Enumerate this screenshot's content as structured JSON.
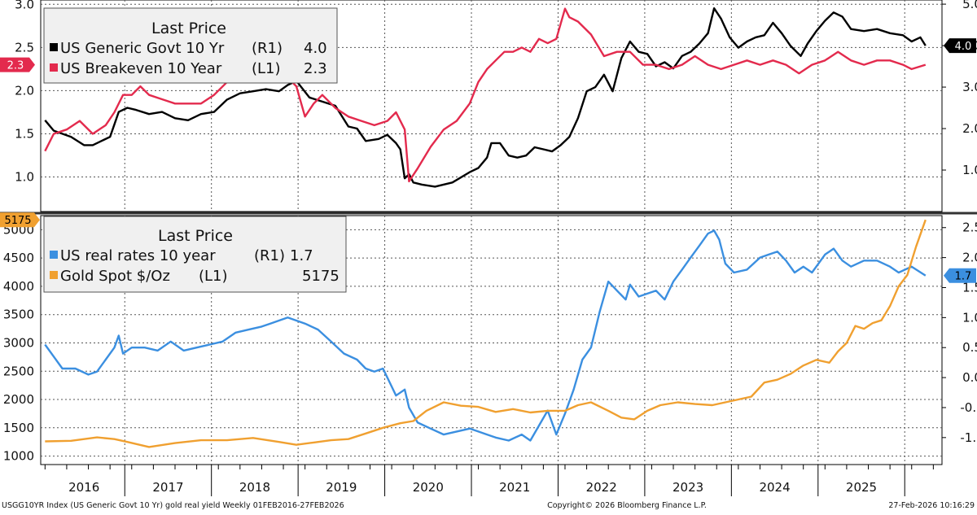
{
  "chart_data": [
    {
      "type": "line",
      "legend_title": "Last Price",
      "legend_placement": "top-left",
      "grid": true,
      "left_axis": {
        "ylim": [
          0.6,
          3.05
        ],
        "ticks": [
          1.0,
          1.5,
          2.0,
          2.5,
          3.0
        ],
        "tick_labels": [
          "1.0",
          "1.5",
          "2.0",
          "2.5",
          "3.0"
        ]
      },
      "right_axis": {
        "ylim": [
          0.0,
          5.1
        ],
        "ticks": [
          1.0,
          2.0,
          3.0,
          4.0,
          5.0
        ],
        "tick_labels": [
          "1.0",
          "2.0",
          "3.0",
          "4.0",
          "5.0"
        ]
      },
      "series": [
        {
          "name": "US Generic Govt 10 Yr",
          "axis_ref": "(R1)",
          "last_label": "4.0",
          "color": "#000000",
          "x": [
            2016.0,
            2016.1,
            2016.3,
            2016.45,
            2016.55,
            2016.65,
            2016.75,
            2016.85,
            2016.95,
            2017.05,
            2017.2,
            2017.35,
            2017.5,
            2017.65,
            2017.8,
            2017.95,
            2018.1,
            2018.25,
            2018.4,
            2018.55,
            2018.7,
            2018.8,
            2018.9,
            2019.05,
            2019.2,
            2019.35,
            2019.5,
            2019.6,
            2019.7,
            2019.85,
            2019.95,
            2020.05,
            2020.1,
            2020.15,
            2020.2,
            2020.25,
            2020.35,
            2020.5,
            2020.7,
            2020.9,
            2021.0,
            2021.1,
            2021.15,
            2021.25,
            2021.35,
            2021.45,
            2021.55,
            2021.65,
            2021.75,
            2021.85,
            2021.95,
            2022.05,
            2022.15,
            2022.25,
            2022.35,
            2022.45,
            2022.55,
            2022.65,
            2022.75,
            2022.85,
            2022.95,
            2023.05,
            2023.15,
            2023.25,
            2023.35,
            2023.45,
            2023.55,
            2023.65,
            2023.72,
            2023.8,
            2023.9,
            2024.0,
            2024.1,
            2024.2,
            2024.3,
            2024.4,
            2024.5,
            2024.6,
            2024.72,
            2024.8,
            2024.9,
            2025.0,
            2025.1,
            2025.2,
            2025.3,
            2025.45,
            2025.6,
            2025.75,
            2025.9,
            2026.0,
            2026.1,
            2026.16
          ],
          "values": [
            2.2,
            1.95,
            1.8,
            1.6,
            1.6,
            1.7,
            1.8,
            2.4,
            2.5,
            2.45,
            2.35,
            2.4,
            2.25,
            2.2,
            2.35,
            2.4,
            2.7,
            2.85,
            2.9,
            2.95,
            2.9,
            3.05,
            3.15,
            2.75,
            2.65,
            2.55,
            2.05,
            2.0,
            1.7,
            1.75,
            1.85,
            1.65,
            1.5,
            0.8,
            0.9,
            0.7,
            0.65,
            0.6,
            0.7,
            0.95,
            1.05,
            1.3,
            1.65,
            1.65,
            1.35,
            1.3,
            1.35,
            1.55,
            1.5,
            1.45,
            1.6,
            1.8,
            2.25,
            2.9,
            3.0,
            3.3,
            2.9,
            3.7,
            4.1,
            3.85,
            3.8,
            3.5,
            3.6,
            3.45,
            3.75,
            3.85,
            4.05,
            4.3,
            4.9,
            4.65,
            4.2,
            3.95,
            4.1,
            4.2,
            4.25,
            4.55,
            4.3,
            4.0,
            3.75,
            4.05,
            4.35,
            4.6,
            4.8,
            4.7,
            4.4,
            4.35,
            4.4,
            4.3,
            4.25,
            4.1,
            4.2,
            4.0
          ]
        },
        {
          "name": "US Breakeven 10 Year",
          "axis_ref": "(L1)",
          "last_label": "2.3",
          "color": "#e32a4d",
          "x": [
            2016.0,
            2016.1,
            2016.25,
            2016.4,
            2016.55,
            2016.7,
            2016.8,
            2016.9,
            2017.0,
            2017.1,
            2017.2,
            2017.35,
            2017.5,
            2017.65,
            2017.8,
            2017.95,
            2018.1,
            2018.25,
            2018.4,
            2018.55,
            2018.7,
            2018.8,
            2018.9,
            2019.0,
            2019.1,
            2019.2,
            2019.35,
            2019.5,
            2019.65,
            2019.8,
            2019.95,
            2020.05,
            2020.15,
            2020.2,
            2020.3,
            2020.45,
            2020.6,
            2020.75,
            2020.9,
            2021.0,
            2021.1,
            2021.2,
            2021.3,
            2021.4,
            2021.5,
            2021.6,
            2021.7,
            2021.8,
            2021.9,
            2022.0,
            2022.05,
            2022.15,
            2022.3,
            2022.45,
            2022.6,
            2022.75,
            2022.9,
            2023.05,
            2023.2,
            2023.35,
            2023.5,
            2023.65,
            2023.8,
            2023.95,
            2024.1,
            2024.25,
            2024.4,
            2024.55,
            2024.7,
            2024.85,
            2025.0,
            2025.15,
            2025.3,
            2025.45,
            2025.6,
            2025.75,
            2025.9,
            2026.0,
            2026.16
          ],
          "values": [
            1.3,
            1.5,
            1.55,
            1.65,
            1.5,
            1.6,
            1.75,
            1.95,
            1.95,
            2.05,
            1.95,
            1.9,
            1.85,
            1.85,
            1.85,
            1.95,
            2.1,
            2.15,
            2.1,
            2.1,
            2.1,
            2.15,
            2.05,
            1.7,
            1.85,
            1.95,
            1.8,
            1.7,
            1.65,
            1.6,
            1.65,
            1.75,
            1.55,
            0.95,
            1.1,
            1.35,
            1.55,
            1.65,
            1.85,
            2.1,
            2.25,
            2.35,
            2.45,
            2.45,
            2.5,
            2.45,
            2.6,
            2.55,
            2.6,
            2.95,
            2.85,
            2.8,
            2.65,
            2.4,
            2.45,
            2.45,
            2.3,
            2.3,
            2.25,
            2.3,
            2.4,
            2.3,
            2.25,
            2.3,
            2.35,
            2.3,
            2.35,
            2.3,
            2.2,
            2.3,
            2.35,
            2.45,
            2.35,
            2.3,
            2.35,
            2.35,
            2.3,
            2.25,
            2.3
          ]
        }
      ],
      "left_tag": {
        "label": "2.3",
        "color": "#e32a4d"
      },
      "right_tag": {
        "label": "4.0",
        "color": "#000000"
      }
    },
    {
      "type": "line",
      "legend_title": "Last Price",
      "legend_placement": "top-left",
      "grid": true,
      "left_axis": {
        "ylim": [
          850,
          5250
        ],
        "ticks": [
          1000,
          1500,
          2000,
          2500,
          3000,
          3500,
          4000,
          4500,
          5000
        ],
        "tick_labels": [
          "1000",
          "1500",
          "2000",
          "2500",
          "3000",
          "3500",
          "4000",
          "4500",
          "5000"
        ]
      },
      "right_axis": {
        "ylim": [
          -1.45,
          2.7
        ],
        "ticks": [
          -1.0,
          -0.5,
          0.0,
          0.5,
          1.0,
          1.5,
          2.0,
          2.5
        ],
        "tick_labels": [
          "-1.0",
          "-0.5",
          "0.0",
          "0.5",
          "1.0",
          "1.5",
          "2.0",
          "2.5"
        ]
      },
      "series": [
        {
          "name": "US real rates 10 year",
          "axis_ref": "(R1)",
          "last_label": "1.7",
          "color": "#3b8fe0",
          "x": [
            2016.0,
            2016.1,
            2016.2,
            2016.35,
            2016.5,
            2016.6,
            2016.7,
            2016.8,
            2016.85,
            2016.9,
            2017.0,
            2017.15,
            2017.3,
            2017.45,
            2017.6,
            2017.75,
            2017.9,
            2018.05,
            2018.2,
            2018.35,
            2018.5,
            2018.6,
            2018.7,
            2018.8,
            2018.9,
            2019.0,
            2019.15,
            2019.3,
            2019.45,
            2019.6,
            2019.7,
            2019.8,
            2019.9,
            2020.0,
            2020.05,
            2020.15,
            2020.2,
            2020.3,
            2020.45,
            2020.6,
            2020.75,
            2020.9,
            2021.0,
            2021.1,
            2021.2,
            2021.35,
            2021.5,
            2021.6,
            2021.7,
            2021.8,
            2021.9,
            2022.0,
            2022.1,
            2022.2,
            2022.3,
            2022.4,
            2022.5,
            2022.6,
            2022.7,
            2022.75,
            2022.85,
            2022.95,
            2023.05,
            2023.15,
            2023.25,
            2023.35,
            2023.45,
            2023.55,
            2023.65,
            2023.72,
            2023.78,
            2023.85,
            2023.95,
            2024.1,
            2024.25,
            2024.35,
            2024.45,
            2024.55,
            2024.65,
            2024.75,
            2024.85,
            2025.0,
            2025.1,
            2025.2,
            2025.3,
            2025.45,
            2025.6,
            2025.75,
            2025.85,
            2026.0,
            2026.16
          ],
          "values": [
            0.55,
            0.35,
            0.15,
            0.15,
            0.05,
            0.1,
            0.3,
            0.5,
            0.7,
            0.4,
            0.5,
            0.5,
            0.45,
            0.6,
            0.45,
            0.5,
            0.55,
            0.6,
            0.75,
            0.8,
            0.85,
            0.9,
            0.95,
            1.0,
            0.95,
            0.9,
            0.8,
            0.6,
            0.4,
            0.3,
            0.15,
            0.1,
            0.15,
            -0.15,
            -0.3,
            -0.2,
            -0.5,
            -0.75,
            -0.85,
            -0.95,
            -0.9,
            -0.85,
            -0.9,
            -0.95,
            -1.0,
            -1.05,
            -0.95,
            -1.05,
            -0.8,
            -0.55,
            -0.95,
            -0.6,
            -0.2,
            0.3,
            0.5,
            1.1,
            1.6,
            1.45,
            1.3,
            1.55,
            1.35,
            1.4,
            1.45,
            1.3,
            1.6,
            1.8,
            2.0,
            2.2,
            2.4,
            2.45,
            2.3,
            1.9,
            1.75,
            1.8,
            2.0,
            2.05,
            2.1,
            1.95,
            1.75,
            1.85,
            1.75,
            2.05,
            2.15,
            1.95,
            1.85,
            1.95,
            1.95,
            1.85,
            1.75,
            1.85,
            1.7
          ]
        },
        {
          "name": "Gold Spot $/Oz",
          "axis_ref": "(L1)",
          "last_label": "5175",
          "color": "#f0a030",
          "x": [
            2016.0,
            2016.3,
            2016.6,
            2016.8,
            2016.95,
            2017.2,
            2017.5,
            2017.8,
            2018.1,
            2018.4,
            2018.7,
            2018.9,
            2019.1,
            2019.3,
            2019.5,
            2019.7,
            2019.9,
            2020.1,
            2020.25,
            2020.4,
            2020.6,
            2020.8,
            2021.0,
            2021.2,
            2021.4,
            2021.6,
            2021.8,
            2022.0,
            2022.15,
            2022.3,
            2022.5,
            2022.65,
            2022.8,
            2022.95,
            2023.1,
            2023.3,
            2023.5,
            2023.7,
            2023.85,
            2024.0,
            2024.15,
            2024.3,
            2024.45,
            2024.6,
            2024.75,
            2024.9,
            2025.05,
            2025.15,
            2025.25,
            2025.35,
            2025.45,
            2025.55,
            2025.65,
            2025.75,
            2025.85,
            2025.95,
            2026.05,
            2026.16
          ],
          "values": [
            1260,
            1270,
            1330,
            1300,
            1250,
            1160,
            1230,
            1280,
            1280,
            1320,
            1250,
            1200,
            1240,
            1280,
            1300,
            1400,
            1500,
            1580,
            1620,
            1800,
            1950,
            1890,
            1870,
            1780,
            1830,
            1770,
            1800,
            1800,
            1900,
            1950,
            1800,
            1680,
            1650,
            1800,
            1900,
            1950,
            1920,
            1900,
            1950,
            2000,
            2050,
            2300,
            2350,
            2450,
            2600,
            2700,
            2650,
            2850,
            3000,
            3300,
            3250,
            3350,
            3400,
            3650,
            4000,
            4200,
            4700,
            5175
          ]
        }
      ],
      "left_tag": {
        "label": "5175",
        "color": "#f0a030"
      },
      "right_tag": {
        "label": "1.7",
        "color": "#3b8fe0"
      }
    }
  ],
  "x_axis": {
    "xlim": [
      2015.95,
      2026.35
    ],
    "year_dividers": [
      2016.92,
      2017.92,
      2018.92,
      2019.92,
      2020.92,
      2021.92,
      2022.92,
      2023.92,
      2024.92,
      2025.92
    ],
    "labels": [
      {
        "text": "2016",
        "x": 2016.45
      },
      {
        "text": "2017",
        "x": 2017.42
      },
      {
        "text": "2018",
        "x": 2018.42
      },
      {
        "text": "2019",
        "x": 2019.42
      },
      {
        "text": "2020",
        "x": 2020.42
      },
      {
        "text": "2021",
        "x": 2021.42
      },
      {
        "text": "2022",
        "x": 2022.42
      },
      {
        "text": "2023",
        "x": 2023.42
      },
      {
        "text": "2024",
        "x": 2024.42
      },
      {
        "text": "2025",
        "x": 2025.42
      }
    ]
  },
  "footer": {
    "left": "USGG10YR Index (US Generic Govt 10 Yr) gold real yield Weekly 01FEB2016-27FEB2026",
    "center": "Copyright© 2026 Bloomberg Finance L.P.",
    "right": "27-Feb-2026 10:16:29"
  }
}
